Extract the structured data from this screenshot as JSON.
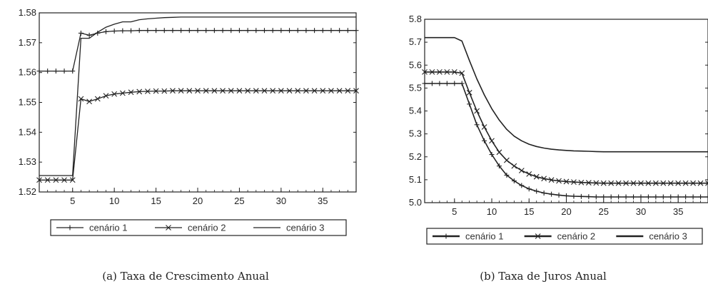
{
  "captions": {
    "a": "(a) Taxa de Crescimento Anual",
    "b": "(b) Taxa de Juros Anual"
  },
  "chart_data": [
    {
      "type": "line",
      "title": "",
      "xlabel": "",
      "ylabel": "",
      "xlim": [
        1,
        39
      ],
      "ylim": [
        1.52,
        1.58
      ],
      "x_ticks": [
        5,
        10,
        15,
        20,
        25,
        30,
        35
      ],
      "y_ticks": [
        1.52,
        1.53,
        1.54,
        1.55,
        1.56,
        1.57,
        1.58
      ],
      "x_tick_labels": [
        "5",
        "10",
        "15",
        "20",
        "25",
        "30",
        "35"
      ],
      "y_tick_labels": [
        "1.52",
        "1.53",
        "1.54",
        "1.55",
        "1.56",
        "1.57",
        "1.58"
      ],
      "grid": false,
      "legend_position": "bottom",
      "series": [
        {
          "name": "cenário 1",
          "marker": "plus",
          "points": [
            [
              1,
              1.5605
            ],
            [
              2,
              1.5605
            ],
            [
              3,
              1.5605
            ],
            [
              4,
              1.5605
            ],
            [
              5,
              1.5605
            ],
            [
              6,
              1.5732
            ],
            [
              7,
              1.5725
            ],
            [
              8,
              1.5732
            ],
            [
              9,
              1.5737
            ],
            [
              10,
              1.5739
            ],
            [
              11,
              1.574
            ],
            [
              12,
              1.574
            ],
            [
              13,
              1.5741
            ],
            [
              14,
              1.5741
            ],
            [
              15,
              1.5741
            ],
            [
              16,
              1.5741
            ],
            [
              17,
              1.5741
            ],
            [
              18,
              1.5741
            ],
            [
              19,
              1.5741
            ],
            [
              20,
              1.5741
            ],
            [
              21,
              1.5741
            ],
            [
              22,
              1.5741
            ],
            [
              23,
              1.5741
            ],
            [
              24,
              1.5741
            ],
            [
              25,
              1.5741
            ],
            [
              26,
              1.5741
            ],
            [
              27,
              1.5741
            ],
            [
              28,
              1.5741
            ],
            [
              29,
              1.5741
            ],
            [
              30,
              1.5741
            ],
            [
              31,
              1.5741
            ],
            [
              32,
              1.5741
            ],
            [
              33,
              1.5741
            ],
            [
              34,
              1.5741
            ],
            [
              35,
              1.5741
            ],
            [
              36,
              1.5741
            ],
            [
              37,
              1.5741
            ],
            [
              38,
              1.5741
            ],
            [
              39,
              1.5741
            ]
          ]
        },
        {
          "name": "cenário 2",
          "marker": "cross",
          "points": [
            [
              1,
              1.524
            ],
            [
              2,
              1.524
            ],
            [
              3,
              1.524
            ],
            [
              4,
              1.524
            ],
            [
              5,
              1.524
            ],
            [
              6,
              1.5512
            ],
            [
              7,
              1.5503
            ],
            [
              8,
              1.5512
            ],
            [
              9,
              1.5522
            ],
            [
              10,
              1.5528
            ],
            [
              11,
              1.5531
            ],
            [
              12,
              1.5534
            ],
            [
              13,
              1.5536
            ],
            [
              14,
              1.5537
            ],
            [
              15,
              1.5538
            ],
            [
              16,
              1.5538
            ],
            [
              17,
              1.5539
            ],
            [
              18,
              1.5539
            ],
            [
              19,
              1.5539
            ],
            [
              20,
              1.5539
            ],
            [
              21,
              1.5539
            ],
            [
              22,
              1.5539
            ],
            [
              23,
              1.5539
            ],
            [
              24,
              1.5539
            ],
            [
              25,
              1.5539
            ],
            [
              26,
              1.5539
            ],
            [
              27,
              1.5539
            ],
            [
              28,
              1.5539
            ],
            [
              29,
              1.5539
            ],
            [
              30,
              1.5539
            ],
            [
              31,
              1.5539
            ],
            [
              32,
              1.5539
            ],
            [
              33,
              1.5539
            ],
            [
              34,
              1.5539
            ],
            [
              35,
              1.5539
            ],
            [
              36,
              1.5539
            ],
            [
              37,
              1.5539
            ],
            [
              38,
              1.5539
            ],
            [
              39,
              1.5539
            ]
          ]
        },
        {
          "name": "cenário 3",
          "marker": "none",
          "points": [
            [
              1,
              1.5255
            ],
            [
              2,
              1.5255
            ],
            [
              3,
              1.5255
            ],
            [
              4,
              1.5255
            ],
            [
              5,
              1.5255
            ],
            [
              6,
              1.5715
            ],
            [
              7,
              1.5715
            ],
            [
              8,
              1.5735
            ],
            [
              9,
              1.5752
            ],
            [
              10,
              1.5762
            ],
            [
              11,
              1.577
            ],
            [
              12,
              1.577
            ],
            [
              13,
              1.5777
            ],
            [
              14,
              1.578
            ],
            [
              15,
              1.5782
            ],
            [
              16,
              1.5784
            ],
            [
              17,
              1.5785
            ],
            [
              18,
              1.5786
            ],
            [
              19,
              1.5786
            ],
            [
              20,
              1.5786
            ],
            [
              21,
              1.5786
            ],
            [
              22,
              1.5786
            ],
            [
              23,
              1.5786
            ],
            [
              24,
              1.5786
            ],
            [
              25,
              1.5786
            ],
            [
              26,
              1.5786
            ],
            [
              27,
              1.5786
            ],
            [
              28,
              1.5786
            ],
            [
              29,
              1.5786
            ],
            [
              30,
              1.5786
            ],
            [
              31,
              1.5786
            ],
            [
              32,
              1.5786
            ],
            [
              33,
              1.5786
            ],
            [
              34,
              1.5786
            ],
            [
              35,
              1.5786
            ],
            [
              36,
              1.5786
            ],
            [
              37,
              1.5786
            ],
            [
              38,
              1.5786
            ],
            [
              39,
              1.5786
            ]
          ]
        }
      ]
    },
    {
      "type": "line",
      "title": "",
      "xlabel": "",
      "ylabel": "",
      "xlim": [
        1,
        39
      ],
      "ylim": [
        5.0,
        5.8
      ],
      "x_ticks": [
        5,
        10,
        15,
        20,
        25,
        30,
        35
      ],
      "y_ticks": [
        5.0,
        5.1,
        5.2,
        5.3,
        5.4,
        5.5,
        5.6,
        5.7,
        5.8
      ],
      "x_tick_labels": [
        "5",
        "10",
        "15",
        "20",
        "25",
        "30",
        "35"
      ],
      "y_tick_labels": [
        "5.0",
        "5.1",
        "5.2",
        "5.3",
        "5.4",
        "5.5",
        "5.6",
        "5.7",
        "5.8"
      ],
      "grid": false,
      "legend_position": "bottom",
      "series": [
        {
          "name": "cenário 1",
          "marker": "plus",
          "points": [
            [
              1,
              5.52
            ],
            [
              2,
              5.52
            ],
            [
              3,
              5.52
            ],
            [
              4,
              5.52
            ],
            [
              5,
              5.52
            ],
            [
              6,
              5.52
            ],
            [
              7,
              5.43
            ],
            [
              8,
              5.34
            ],
            [
              9,
              5.27
            ],
            [
              10,
              5.21
            ],
            [
              11,
              5.16
            ],
            [
              12,
              5.12
            ],
            [
              13,
              5.095
            ],
            [
              14,
              5.075
            ],
            [
              15,
              5.06
            ],
            [
              16,
              5.05
            ],
            [
              17,
              5.042
            ],
            [
              18,
              5.037
            ],
            [
              19,
              5.033
            ],
            [
              20,
              5.03
            ],
            [
              21,
              5.028
            ],
            [
              22,
              5.027
            ],
            [
              23,
              5.026
            ],
            [
              24,
              5.025
            ],
            [
              25,
              5.025
            ],
            [
              26,
              5.025
            ],
            [
              27,
              5.025
            ],
            [
              28,
              5.025
            ],
            [
              29,
              5.025
            ],
            [
              30,
              5.025
            ],
            [
              31,
              5.025
            ],
            [
              32,
              5.025
            ],
            [
              33,
              5.025
            ],
            [
              34,
              5.025
            ],
            [
              35,
              5.025
            ],
            [
              36,
              5.025
            ],
            [
              37,
              5.025
            ],
            [
              38,
              5.025
            ],
            [
              39,
              5.025
            ]
          ]
        },
        {
          "name": "cenário 2",
          "marker": "cross",
          "points": [
            [
              1,
              5.57
            ],
            [
              2,
              5.57
            ],
            [
              3,
              5.57
            ],
            [
              4,
              5.57
            ],
            [
              5,
              5.57
            ],
            [
              6,
              5.565
            ],
            [
              7,
              5.48
            ],
            [
              8,
              5.4
            ],
            [
              9,
              5.33
            ],
            [
              10,
              5.27
            ],
            [
              11,
              5.22
            ],
            [
              12,
              5.185
            ],
            [
              13,
              5.16
            ],
            [
              14,
              5.14
            ],
            [
              15,
              5.125
            ],
            [
              16,
              5.113
            ],
            [
              17,
              5.105
            ],
            [
              18,
              5.099
            ],
            [
              19,
              5.095
            ],
            [
              20,
              5.092
            ],
            [
              21,
              5.09
            ],
            [
              22,
              5.088
            ],
            [
              23,
              5.087
            ],
            [
              24,
              5.086
            ],
            [
              25,
              5.085
            ],
            [
              26,
              5.085
            ],
            [
              27,
              5.085
            ],
            [
              28,
              5.085
            ],
            [
              29,
              5.085
            ],
            [
              30,
              5.085
            ],
            [
              31,
              5.085
            ],
            [
              32,
              5.085
            ],
            [
              33,
              5.085
            ],
            [
              34,
              5.085
            ],
            [
              35,
              5.085
            ],
            [
              36,
              5.085
            ],
            [
              37,
              5.085
            ],
            [
              38,
              5.085
            ],
            [
              39,
              5.085
            ]
          ]
        },
        {
          "name": "cenário 3",
          "marker": "none",
          "points": [
            [
              1,
              5.72
            ],
            [
              2,
              5.72
            ],
            [
              3,
              5.72
            ],
            [
              4,
              5.72
            ],
            [
              5,
              5.72
            ],
            [
              6,
              5.705
            ],
            [
              7,
              5.62
            ],
            [
              8,
              5.54
            ],
            [
              9,
              5.47
            ],
            [
              10,
              5.41
            ],
            [
              11,
              5.36
            ],
            [
              12,
              5.32
            ],
            [
              13,
              5.29
            ],
            [
              14,
              5.27
            ],
            [
              15,
              5.255
            ],
            [
              16,
              5.245
            ],
            [
              17,
              5.238
            ],
            [
              18,
              5.233
            ],
            [
              19,
              5.23
            ],
            [
              20,
              5.228
            ],
            [
              21,
              5.226
            ],
            [
              22,
              5.225
            ],
            [
              23,
              5.224
            ],
            [
              24,
              5.223
            ],
            [
              25,
              5.222
            ],
            [
              26,
              5.222
            ],
            [
              27,
              5.222
            ],
            [
              28,
              5.222
            ],
            [
              29,
              5.222
            ],
            [
              30,
              5.222
            ],
            [
              31,
              5.222
            ],
            [
              32,
              5.222
            ],
            [
              33,
              5.222
            ],
            [
              34,
              5.222
            ],
            [
              35,
              5.222
            ],
            [
              36,
              5.222
            ],
            [
              37,
              5.222
            ],
            [
              38,
              5.222
            ],
            [
              39,
              5.222
            ]
          ]
        }
      ]
    }
  ]
}
